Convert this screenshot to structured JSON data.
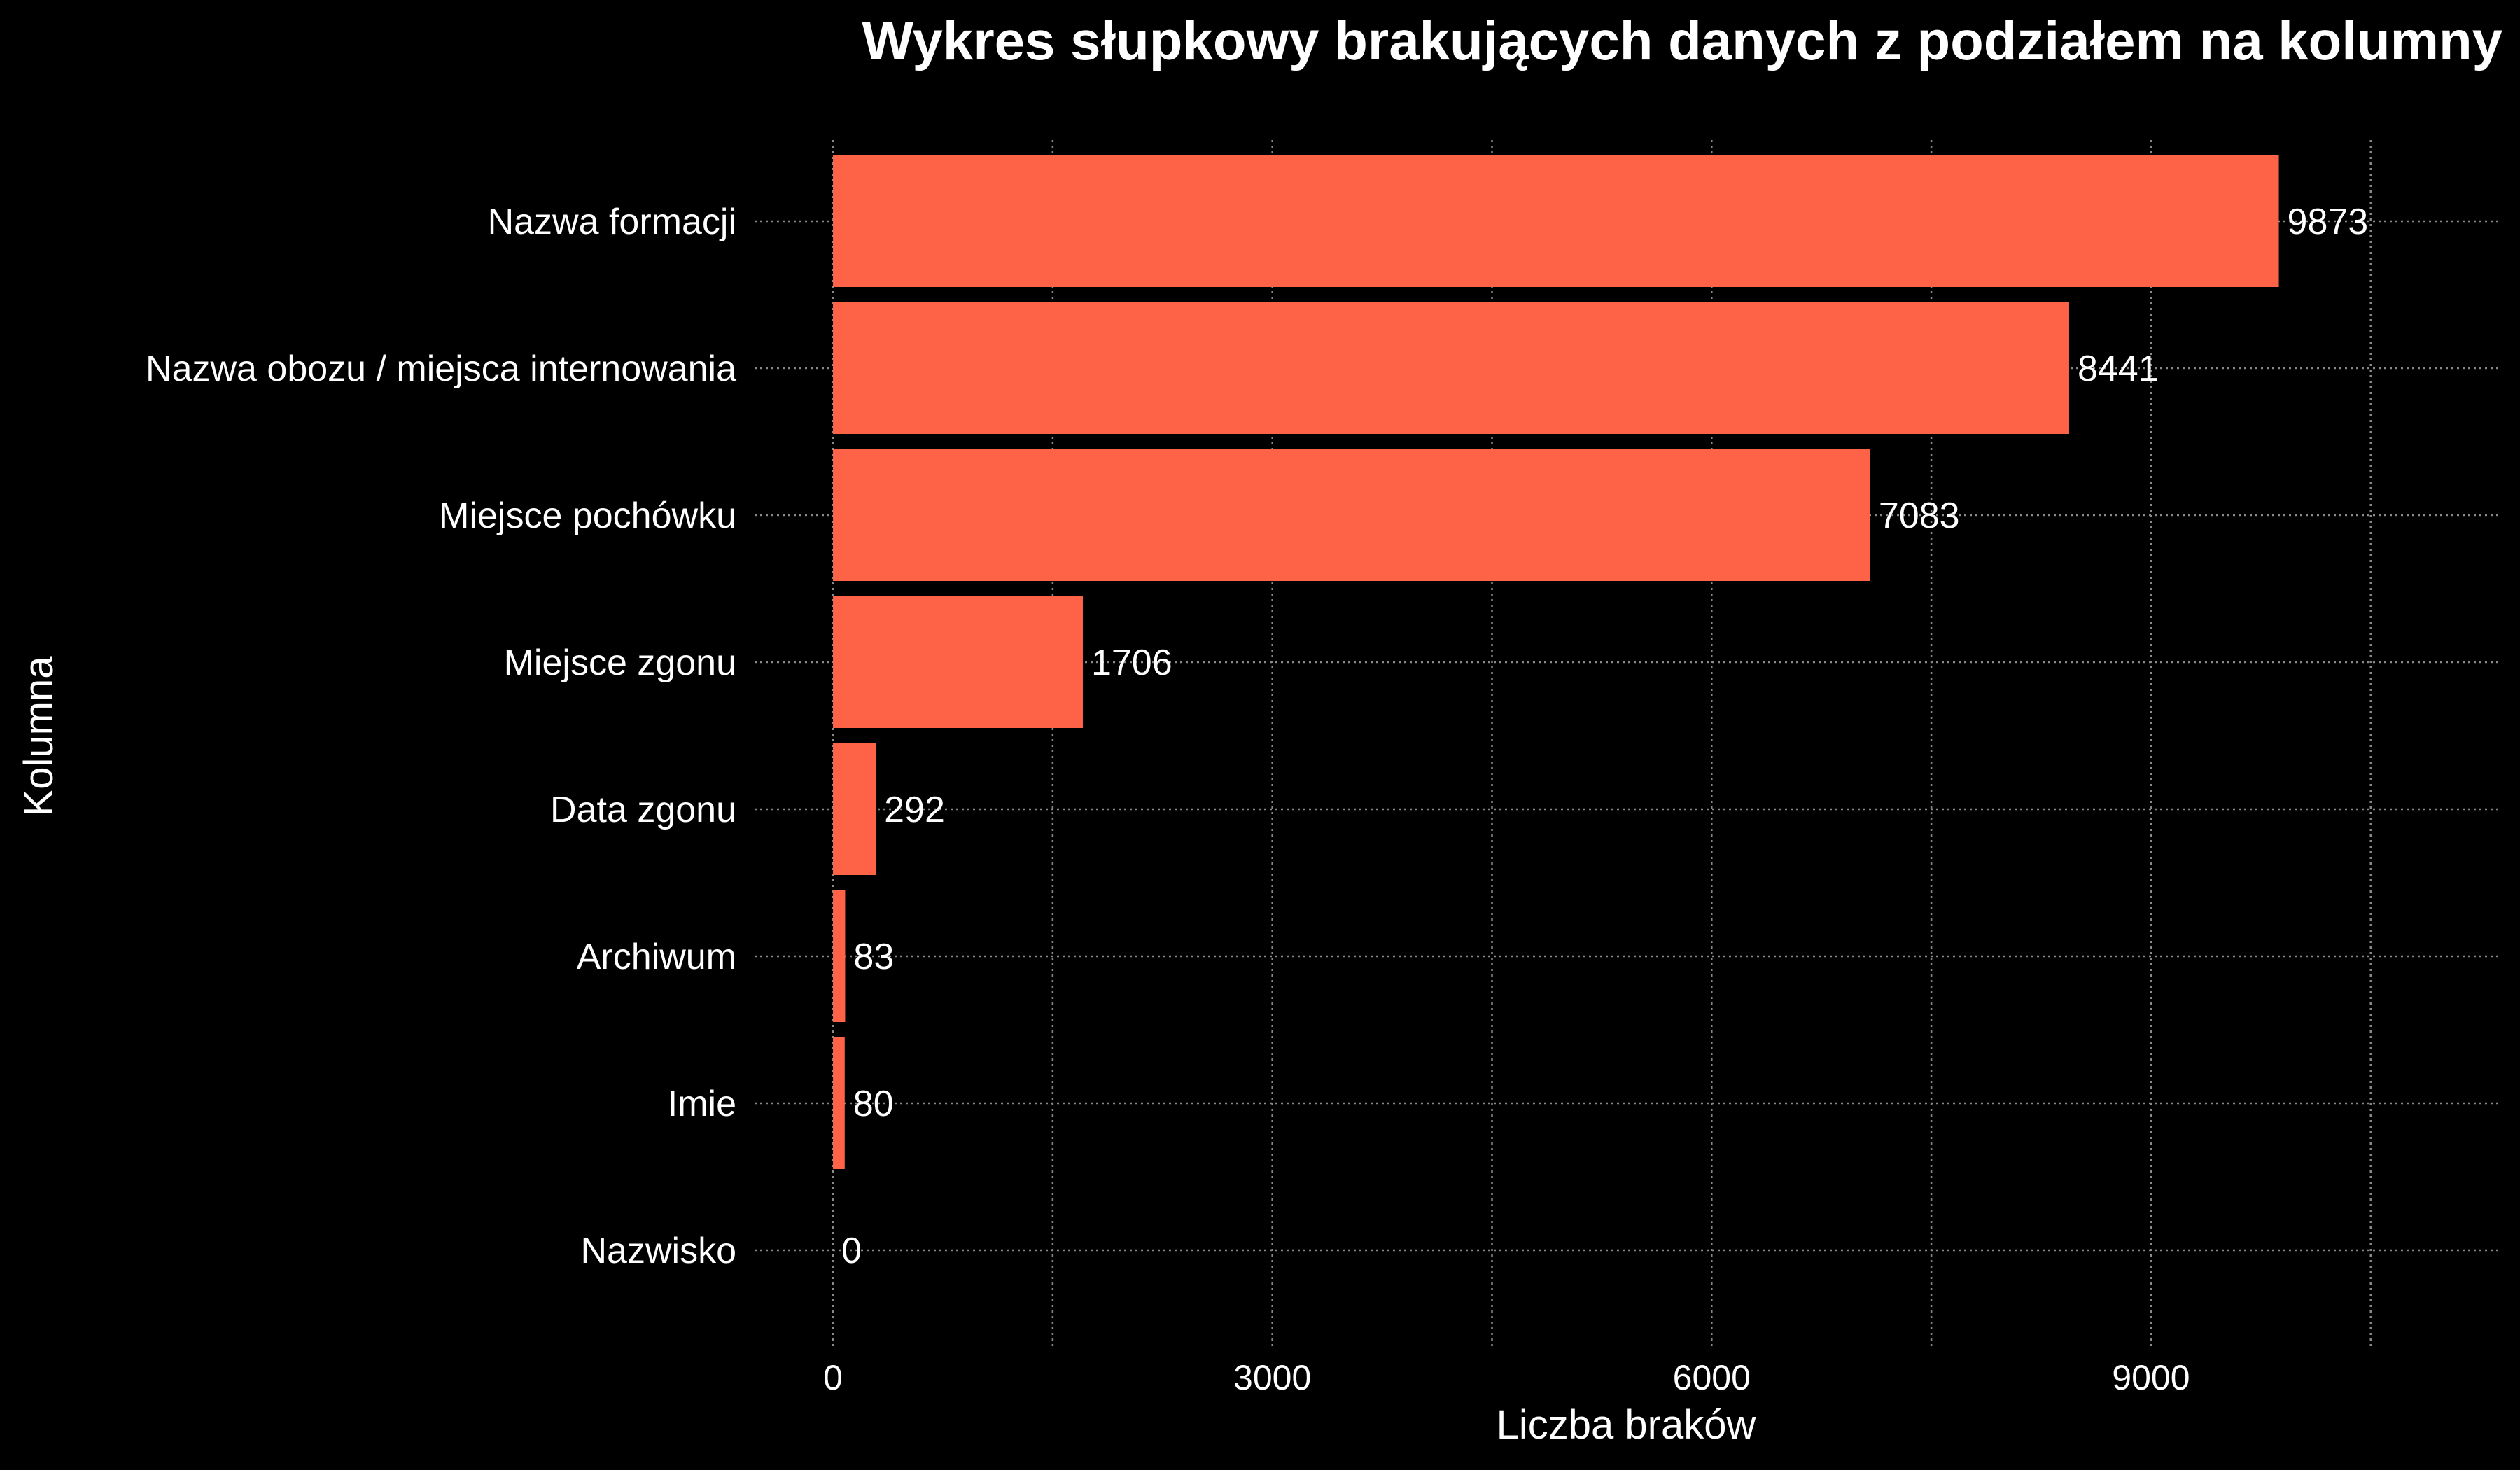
{
  "chart_data": {
    "type": "bar",
    "orientation": "horizontal",
    "title": "Wykres słupkowy brakujących danych z podziałem na kolumny",
    "xlabel": "Liczba braków",
    "ylabel": "Kolumna",
    "categories": [
      "Nazwa formacji",
      "Nazwa obozu / miejsca internowania",
      "Miejsce pochówku",
      "Miejsce zgonu",
      "Data zgonu",
      "Archiwum",
      "Imie",
      "Nazwisko"
    ],
    "values": [
      9873,
      8441,
      7083,
      1706,
      292,
      83,
      80,
      0
    ],
    "xlim": [
      -550,
      11400
    ],
    "xticks": [
      0,
      3000,
      6000,
      9000
    ],
    "minor_xticks": [
      1500,
      4500,
      7500,
      10500
    ],
    "grid": true,
    "bar_color": "#ff6347",
    "background_color": "#000000",
    "text_color": "#ffffff",
    "grid_color": "#8a8a8a"
  }
}
